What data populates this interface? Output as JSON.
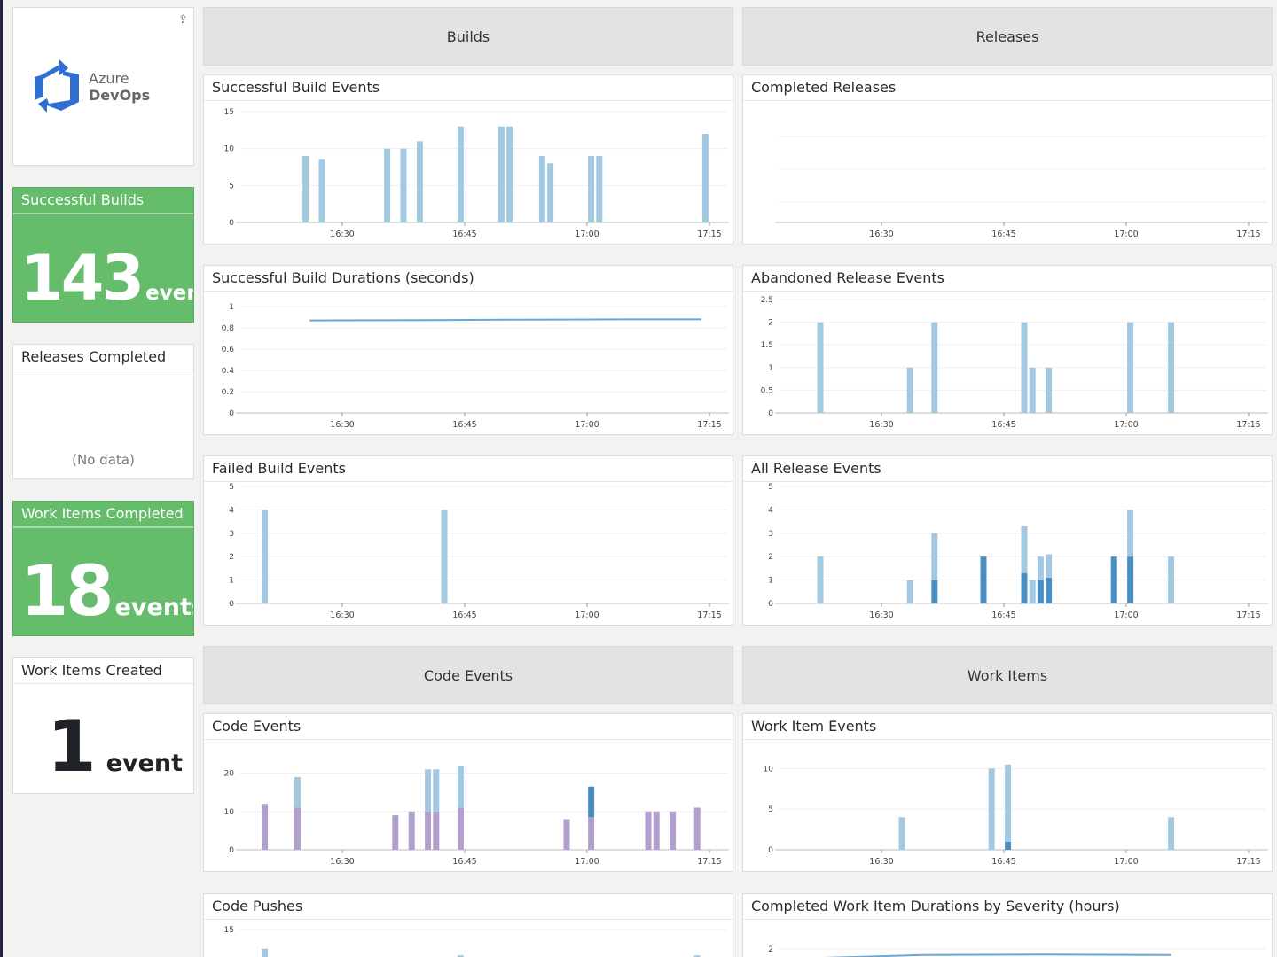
{
  "logo": {
    "line1": "Azure",
    "line2": "DevOps",
    "share_icon": "share-icon",
    "brand_color": "#2f6fd1"
  },
  "stats": {
    "successful_builds": {
      "title": "Successful Builds",
      "value": "143",
      "unit": "events"
    },
    "releases_completed": {
      "title": "Releases Completed",
      "empty": "(No data)"
    },
    "work_items_completed": {
      "title": "Work Items Completed",
      "value": "18",
      "unit": "events"
    },
    "work_items_created": {
      "title": "Work Items Created",
      "value": "1",
      "unit": "event"
    }
  },
  "groups": {
    "builds": "Builds",
    "releases": "Releases",
    "code_events": "Code Events",
    "work_items": "Work Items"
  },
  "colors": {
    "light_blue": "#a3c9e2",
    "dark_blue": "#4a8fc1",
    "purple": "#b19fcd",
    "green": "#65bc6a",
    "line": "#6aa7d4"
  },
  "chart_data": [
    {
      "title": "Successful Build Events",
      "type": "bar",
      "x_ticks": [
        "16:30",
        "16:45",
        "17:00",
        "17:15"
      ],
      "y_ticks": [
        "0",
        "5",
        "10",
        "15"
      ],
      "ylim": [
        0,
        15
      ],
      "stack_colors": [
        "#a3c9e2"
      ],
      "bars": [
        {
          "time": "16:25:30",
          "stack": [
            9
          ]
        },
        {
          "time": "16:27:30",
          "stack": [
            8.5
          ]
        },
        {
          "time": "16:35:30",
          "stack": [
            10
          ]
        },
        {
          "time": "16:37:30",
          "stack": [
            10
          ]
        },
        {
          "time": "16:39:30",
          "stack": [
            11
          ]
        },
        {
          "time": "16:44:30",
          "stack": [
            13
          ]
        },
        {
          "time": "16:49:30",
          "stack": [
            13
          ]
        },
        {
          "time": "16:50:30",
          "stack": [
            13
          ]
        },
        {
          "time": "16:54:30",
          "stack": [
            9
          ]
        },
        {
          "time": "16:55:30",
          "stack": [
            8
          ]
        },
        {
          "time": "17:00:30",
          "stack": [
            9
          ]
        },
        {
          "time": "17:01:30",
          "stack": [
            9
          ]
        },
        {
          "time": "17:14:30",
          "stack": [
            12
          ]
        }
      ]
    },
    {
      "title": "Completed Releases",
      "type": "bar",
      "x_ticks": [
        "16:30",
        "16:45",
        "17:00",
        "17:15"
      ],
      "y_ticks": [],
      "ylim": [
        0,
        1
      ],
      "stack_colors": [
        "#a3c9e2"
      ],
      "bars": []
    },
    {
      "title": "Successful Build Durations (seconds)",
      "type": "line",
      "x_ticks": [
        "16:30",
        "16:45",
        "17:00",
        "17:15"
      ],
      "y_ticks": [
        "0",
        "0.2",
        "0.4",
        "0.6",
        "0.8",
        "1"
      ],
      "ylim": [
        0,
        1
      ],
      "lines": [
        {
          "color": "#6aa7d4",
          "points": [
            [
              "16:26:00",
              0.87
            ],
            [
              "16:40:00",
              0.873
            ],
            [
              "16:50:00",
              0.877
            ],
            [
              "17:05:00",
              0.88
            ],
            [
              "17:14:00",
              0.88
            ]
          ]
        }
      ]
    },
    {
      "title": "Abandoned Release Events",
      "type": "bar",
      "x_ticks": [
        "16:30",
        "16:45",
        "17:00",
        "17:15"
      ],
      "y_ticks": [
        "0",
        "0.5",
        "1",
        "1.5",
        "2",
        "2.5"
      ],
      "ylim": [
        0,
        2.5
      ],
      "stack_colors": [
        "#a3c9e2"
      ],
      "bars": [
        {
          "time": "16:22:30",
          "stack": [
            2
          ]
        },
        {
          "time": "16:33:30",
          "stack": [
            1
          ]
        },
        {
          "time": "16:36:30",
          "stack": [
            2
          ]
        },
        {
          "time": "16:47:30",
          "stack": [
            2
          ]
        },
        {
          "time": "16:48:30",
          "stack": [
            1
          ]
        },
        {
          "time": "16:50:30",
          "stack": [
            1
          ]
        },
        {
          "time": "17:00:30",
          "stack": [
            2
          ]
        },
        {
          "time": "17:05:30",
          "stack": [
            2
          ]
        }
      ]
    },
    {
      "title": "Failed Build Events",
      "type": "bar",
      "x_ticks": [
        "16:30",
        "16:45",
        "17:00",
        "17:15"
      ],
      "y_ticks": [
        "0",
        "1",
        "2",
        "3",
        "4",
        "5"
      ],
      "ylim": [
        0,
        5
      ],
      "stack_colors": [
        "#a3c9e2"
      ],
      "bars": [
        {
          "time": "16:20:30",
          "stack": [
            4
          ]
        },
        {
          "time": "16:42:30",
          "stack": [
            4
          ]
        }
      ]
    },
    {
      "title": "All Release Events",
      "type": "bar",
      "x_ticks": [
        "16:30",
        "16:45",
        "17:00",
        "17:15"
      ],
      "y_ticks": [
        "0",
        "1",
        "2",
        "3",
        "4",
        "5"
      ],
      "ylim": [
        0,
        5
      ],
      "stack_colors": [
        "#4a8fc1",
        "#a3c9e2"
      ],
      "bars": [
        {
          "time": "16:22:30",
          "stack": [
            0,
            2
          ]
        },
        {
          "time": "16:33:30",
          "stack": [
            0,
            1
          ]
        },
        {
          "time": "16:36:30",
          "stack": [
            1,
            2
          ]
        },
        {
          "time": "16:42:30",
          "stack": [
            2,
            0
          ]
        },
        {
          "time": "16:47:30",
          "stack": [
            1.3,
            2
          ]
        },
        {
          "time": "16:48:30",
          "stack": [
            0,
            1
          ]
        },
        {
          "time": "16:49:30",
          "stack": [
            1,
            1
          ]
        },
        {
          "time": "16:50:30",
          "stack": [
            1.1,
            1
          ]
        },
        {
          "time": "16:58:30",
          "stack": [
            2,
            0
          ]
        },
        {
          "time": "17:00:30",
          "stack": [
            2,
            2
          ]
        },
        {
          "time": "17:05:30",
          "stack": [
            0,
            2
          ]
        }
      ]
    },
    {
      "title": "Code Events",
      "type": "bar",
      "x_ticks": [
        "16:30",
        "16:45",
        "17:00",
        "17:15"
      ],
      "y_ticks": [
        "0",
        "10",
        "20"
      ],
      "ylim": [
        0,
        25
      ],
      "stack_colors": [
        "#b19fcd",
        "#a3c9e2",
        "#4a8fc1"
      ],
      "bars": [
        {
          "time": "16:20:30",
          "stack": [
            12,
            0,
            0
          ]
        },
        {
          "time": "16:24:30",
          "stack": [
            11,
            8,
            0
          ]
        },
        {
          "time": "16:36:30",
          "stack": [
            9,
            0,
            0
          ]
        },
        {
          "time": "16:38:30",
          "stack": [
            10,
            0,
            0
          ]
        },
        {
          "time": "16:40:30",
          "stack": [
            10,
            11,
            0
          ]
        },
        {
          "time": "16:41:30",
          "stack": [
            10,
            11,
            0
          ]
        },
        {
          "time": "16:44:30",
          "stack": [
            11,
            11,
            0
          ]
        },
        {
          "time": "16:57:30",
          "stack": [
            8,
            0,
            0
          ]
        },
        {
          "time": "17:00:30",
          "stack": [
            8.5,
            0,
            8
          ]
        },
        {
          "time": "17:07:30",
          "stack": [
            10,
            0,
            0
          ]
        },
        {
          "time": "17:08:30",
          "stack": [
            10,
            0,
            0
          ]
        },
        {
          "time": "17:10:30",
          "stack": [
            10,
            0,
            0
          ]
        },
        {
          "time": "17:13:30",
          "stack": [
            11,
            0,
            0
          ]
        }
      ]
    },
    {
      "title": "Work Item Events",
      "type": "bar",
      "x_ticks": [
        "16:30",
        "16:45",
        "17:00",
        "17:15"
      ],
      "y_ticks": [
        "0",
        "5",
        "10"
      ],
      "ylim": [
        0,
        12
      ],
      "stack_colors": [
        "#4a8fc1",
        "#a3c9e2"
      ],
      "bars": [
        {
          "time": "16:32:30",
          "stack": [
            0,
            4
          ]
        },
        {
          "time": "16:43:30",
          "stack": [
            0,
            10
          ]
        },
        {
          "time": "16:45:30",
          "stack": [
            1,
            9.5
          ]
        },
        {
          "time": "17:05:30",
          "stack": [
            0,
            4
          ]
        }
      ]
    },
    {
      "title": "Code Pushes",
      "type": "bar",
      "x_ticks": [],
      "y_ticks": [
        "15"
      ],
      "ylim": [
        0,
        15
      ],
      "stack_colors": [
        "#a3c9e2"
      ],
      "bars": [
        {
          "time": "16:20:30",
          "stack": [
            12.4
          ]
        },
        {
          "time": "16:44:30",
          "stack": [
            11.5
          ]
        },
        {
          "time": "17:13:30",
          "stack": [
            11.5
          ]
        }
      ]
    },
    {
      "title": "Completed Work Item Durations by Severity (hours)",
      "type": "line",
      "x_ticks": [],
      "y_ticks": [
        "2"
      ],
      "ylim": [
        0,
        2.5
      ],
      "lines": [
        {
          "color": "#6aa7d4",
          "points": [
            [
              "16:17:30",
              1.78
            ],
            [
              "16:35:00",
              1.87
            ],
            [
              "16:50:00",
              1.88
            ],
            [
              "17:05:30",
              1.87
            ]
          ]
        }
      ]
    }
  ]
}
